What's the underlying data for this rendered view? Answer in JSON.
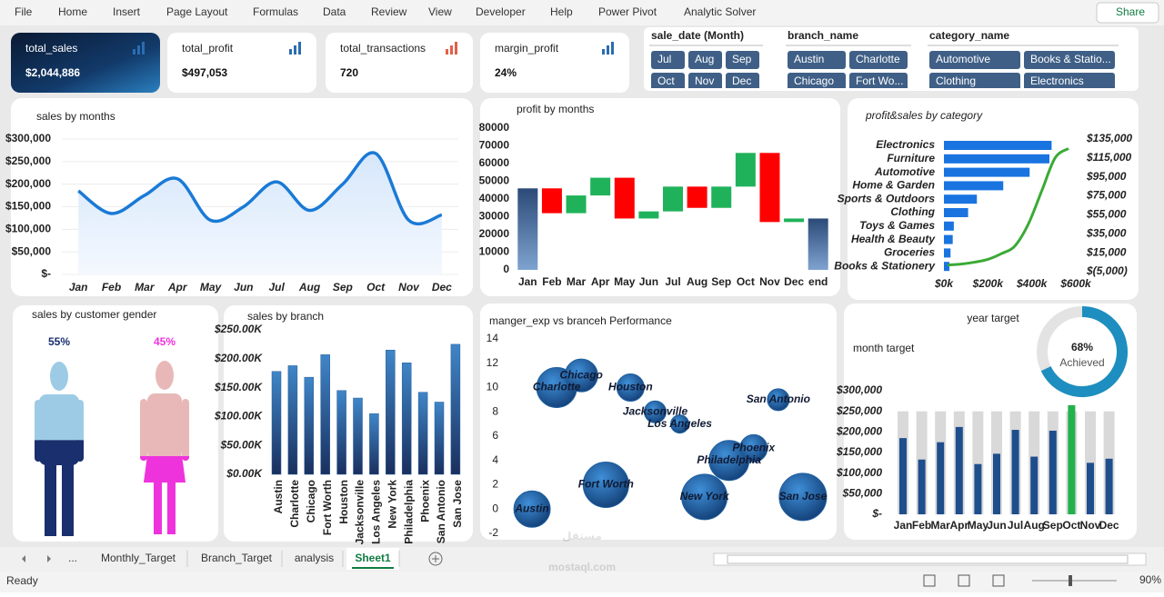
{
  "ribbon": {
    "tabs": [
      "File",
      "Home",
      "Insert",
      "Page Layout",
      "Formulas",
      "Data",
      "Review",
      "View",
      "Developer",
      "Help",
      "Power Pivot",
      "Analytic Solver"
    ],
    "share": "Share"
  },
  "kpis": [
    {
      "title": "total_sales",
      "value": "$2,044,886"
    },
    {
      "title": "total_profit",
      "value": "$497,053"
    },
    {
      "title": "total_transactions",
      "value": "720"
    },
    {
      "title": "margin_profit",
      "value": "24%"
    }
  ],
  "slicers": [
    {
      "title": "sale_date (Month)",
      "items": [
        "Jul",
        "Aug",
        "Sep",
        "Oct",
        "Nov",
        "Dec"
      ]
    },
    {
      "title": "branch_name",
      "items": [
        "Austin",
        "Charlotte",
        "Chicago",
        "Fort Wo..."
      ]
    },
    {
      "title": "category_name",
      "items": [
        "Automotive",
        "Books & Statio...",
        "Clothing",
        "Electronics"
      ]
    }
  ],
  "chart_data": [
    {
      "type": "line",
      "title": "sales by months",
      "categories": [
        "Jan",
        "Feb",
        "Mar",
        "Apr",
        "May",
        "Jun",
        "Jul",
        "Aug",
        "Sep",
        "Oct",
        "Nov",
        "Dec"
      ],
      "values": [
        185000,
        135000,
        175000,
        212000,
        120000,
        150000,
        205000,
        142000,
        200000,
        268000,
        120000,
        132000
      ],
      "color": "#1a7ad6",
      "ylim": [
        0,
        300000
      ],
      "yticks": [
        {
          "value": 0,
          "label": "$-"
        },
        {
          "value": 50000,
          "label": "$50,000"
        },
        {
          "value": 100000,
          "label": "$100,000"
        },
        {
          "value": 150000,
          "label": "$150,000"
        },
        {
          "value": 200000,
          "label": "$200,000"
        },
        {
          "value": 250000,
          "label": "$250,000"
        },
        {
          "value": 300000,
          "label": "$300,000"
        }
      ],
      "grid": true
    },
    {
      "type": "waterfall",
      "title": "profit by months",
      "categories": [
        "Jan",
        "Feb",
        "Mar",
        "Apr",
        "May",
        "Jun",
        "Jul",
        "Aug",
        "Sep",
        "Oct",
        "Nov",
        "Dec",
        "end"
      ],
      "values": [
        46000,
        -14000,
        10000,
        10000,
        -23000,
        4000,
        14000,
        -12000,
        12000,
        19000,
        -39000,
        2000,
        29000
      ],
      "colors": {
        "increase": "#1fb25a",
        "decrease": "#ff0000",
        "total": "#3b5e8c"
      },
      "ylim": [
        0,
        80000
      ],
      "yticks": [
        0,
        10000,
        20000,
        30000,
        40000,
        50000,
        60000,
        70000,
        80000
      ]
    },
    {
      "type": "bar_line",
      "title": "profit&sales by category",
      "categories": [
        "Electronics",
        "Furniture",
        "Automotive",
        "Home & Garden",
        "Sports & Outdoors",
        "Clothing",
        "Toys & Games",
        "Health & Beauty",
        "Groceries",
        "Books & Stationery"
      ],
      "series": [
        {
          "type": "bar",
          "values": [
            490000,
            480000,
            390000,
            270000,
            150000,
            110000,
            45000,
            40000,
            30000,
            25000
          ],
          "color": "#1a74e0"
        },
        {
          "type": "line",
          "axis": "y2",
          "values": [
            125000,
            115000,
            80000,
            45000,
            22000,
            14000,
            8000,
            5000,
            3000,
            2000
          ],
          "color": "#3aaa35"
        }
      ],
      "xlim": [
        0,
        600000
      ],
      "xticks": [
        {
          "value": 0,
          "label": "$0k"
        },
        {
          "value": 200000,
          "label": "$200k"
        },
        {
          "value": 400000,
          "label": "$400k"
        },
        {
          "value": 600000,
          "label": "$600k"
        }
      ],
      "y2lim": [
        -5000,
        135000
      ],
      "y2ticks": [
        {
          "value": -5000,
          "label": "$(5,000)"
        },
        {
          "value": 15000,
          "label": "$15,000"
        },
        {
          "value": 35000,
          "label": "$35,000"
        },
        {
          "value": 55000,
          "label": "$55,000"
        },
        {
          "value": 75000,
          "label": "$75,000"
        },
        {
          "value": 95000,
          "label": "$95,000"
        },
        {
          "value": 115000,
          "label": "$115,000"
        },
        {
          "value": 135000,
          "label": "$135,000"
        }
      ]
    },
    {
      "type": "pictogram",
      "title": "sales by customer gender",
      "values": [
        55,
        45
      ],
      "value_labels": [
        "55%",
        "45%"
      ],
      "ylim": [
        0,
        100
      ],
      "colors": [
        "#1a2f6e",
        "#ee33dd"
      ],
      "light_colors": [
        "#9dcbe6",
        "#e8b8b8"
      ]
    },
    {
      "type": "bar",
      "title": "sales by branch",
      "categories": [
        "Austin",
        "Charlotte",
        "Chicago",
        "Fort Worth",
        "Houston",
        "Jacksonville",
        "Los Angeles",
        "New York",
        "Philadelphia",
        "Phoenix",
        "San Antonio",
        "San Jose"
      ],
      "values": [
        178000,
        188000,
        168000,
        207000,
        145000,
        132000,
        105000,
        215000,
        193000,
        142000,
        125000,
        225000
      ],
      "color": "#2a5c9a",
      "ylim": [
        0,
        250000
      ],
      "yticks": [
        {
          "value": 0,
          "label": "$0.00K"
        },
        {
          "value": 50000,
          "label": "$50.00K"
        },
        {
          "value": 100000,
          "label": "$100.00K"
        },
        {
          "value": 150000,
          "label": "$150.00K"
        },
        {
          "value": 200000,
          "label": "$200.00K"
        },
        {
          "value": 250000,
          "label": "$250.00K"
        }
      ]
    },
    {
      "type": "bubble",
      "title": "manger_exp vs branceh Performance",
      "labels": [
        "Austin",
        "Charlotte",
        "Chicago",
        "Fort Worth",
        "Houston",
        "Jacksonville",
        "Los Angeles",
        "New York",
        "Philadelphia",
        "Phoenix",
        "San Antonio",
        "San Jose"
      ],
      "x": [
        1,
        2,
        3,
        4,
        5,
        6,
        7,
        8,
        9,
        10,
        11,
        12
      ],
      "values": [
        0,
        10,
        11,
        2,
        10,
        8,
        7,
        1,
        4,
        5,
        9,
        1
      ],
      "sizes": [
        40,
        44,
        36,
        50,
        30,
        24,
        20,
        50,
        44,
        30,
        24,
        52
      ],
      "color": "#1f5fa0",
      "xlim": [
        0,
        13
      ],
      "ylim": [
        -2,
        14
      ],
      "yticks": [
        -2,
        0,
        2,
        4,
        6,
        8,
        10,
        12,
        14
      ]
    },
    {
      "type": "bar",
      "title": "month target",
      "categories": [
        "Jan",
        "Feb",
        "Mar",
        "Apr",
        "May",
        "Jun",
        "Jul",
        "Aug",
        "Sep",
        "Oct",
        "Nov",
        "Dec"
      ],
      "series": [
        {
          "values": [
            250000,
            250000,
            250000,
            250000,
            250000,
            250000,
            250000,
            250000,
            250000,
            250000,
            250000,
            250000
          ],
          "color": "#d9d9d9"
        },
        {
          "values": [
            185000,
            133000,
            175000,
            212000,
            122000,
            147000,
            205000,
            140000,
            203000,
            265000,
            125000,
            135000
          ],
          "colors": [
            "#1f4e8c",
            "#1f4e8c",
            "#1f4e8c",
            "#1f4e8c",
            "#1f4e8c",
            "#1f4e8c",
            "#1f4e8c",
            "#1f4e8c",
            "#1f4e8c",
            "#22b14c",
            "#1f4e8c",
            "#1f4e8c"
          ]
        }
      ],
      "ylim": [
        0,
        300000
      ],
      "yticks": [
        {
          "value": 0,
          "label": "$-"
        },
        {
          "value": 50000,
          "label": "$50,000"
        },
        {
          "value": 100000,
          "label": "$100,000"
        },
        {
          "value": 150000,
          "label": "$150,000"
        },
        {
          "value": 200000,
          "label": "$200,000"
        },
        {
          "value": 250000,
          "label": "$250,000"
        },
        {
          "value": 300000,
          "label": "$300,000"
        }
      ]
    },
    {
      "type": "donut",
      "title": "year target",
      "values": [
        68
      ],
      "value_labels": [
        "68%"
      ],
      "label": "Achieved",
      "ylim": [
        0,
        100
      ],
      "color": "#1d8ebf",
      "track_color": "#e3e3e3"
    }
  ],
  "sheet_tabs": {
    "more": "...",
    "tabs": [
      "Monthly_Target",
      "Branch_Target",
      "analysis",
      "Sheet1"
    ],
    "active": "Sheet1"
  },
  "watermark": {
    "arabic": "مستقل",
    "latin": "mostaql.com"
  },
  "status_bar": {
    "status": "Ready",
    "zoom": "90%"
  }
}
